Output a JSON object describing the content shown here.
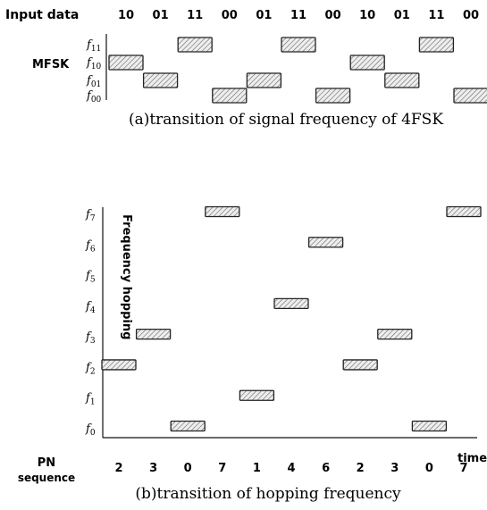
{
  "top": {
    "input_label": "Input data",
    "input_data": [
      "10",
      "01",
      "11",
      "00",
      "01",
      "11",
      "00",
      "10",
      "01",
      "11",
      "00"
    ],
    "mfsk_label": "MFSK",
    "freq_labels": [
      "f11",
      "f10",
      "f01",
      "f00"
    ],
    "caption": "(a)transition of signal frequency of 4FSK"
  },
  "bottom": {
    "y_axis_label": "Frequency hopping",
    "freq_labels": [
      "f7",
      "f6",
      "f5",
      "f4",
      "f3",
      "f2",
      "f1",
      "f0"
    ],
    "time_label": "time",
    "pn_label_line1": "PN",
    "pn_label_line2": "sequence",
    "pn_sequence": [
      "2",
      "3",
      "0",
      "7",
      "1",
      "4",
      "6",
      "2",
      "3",
      "0",
      "7"
    ],
    "caption": "(b)transition of hopping frequency"
  }
}
